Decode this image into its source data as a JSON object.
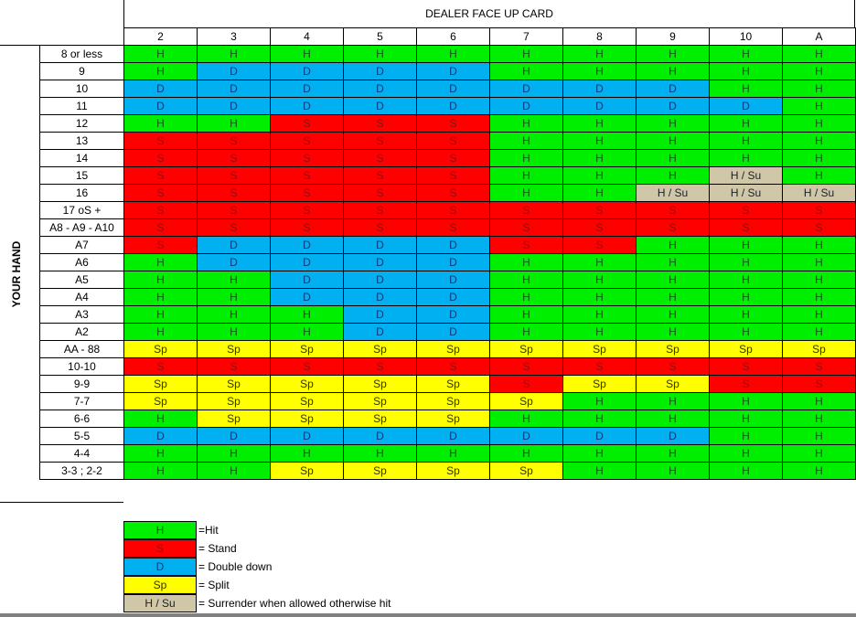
{
  "header": {
    "title": "DEALER FACE UP CARD"
  },
  "side_label": "YOUR HAND",
  "columns": [
    "2",
    "3",
    "4",
    "5",
    "6",
    "7",
    "8",
    "9",
    "10",
    "A"
  ],
  "colors": {
    "H": "#00ee00",
    "S": "#ff0000",
    "D": "#00b0f0",
    "Sp": "#ffff00",
    "H / Su": "#cfc7a8"
  },
  "rows": [
    {
      "label": "8 or less",
      "cells": [
        "H",
        "H",
        "H",
        "H",
        "H",
        "H",
        "H",
        "H",
        "H",
        "H"
      ]
    },
    {
      "label": "9",
      "cells": [
        "H",
        "D",
        "D",
        "D",
        "D",
        "H",
        "H",
        "H",
        "H",
        "H"
      ]
    },
    {
      "label": "10",
      "cells": [
        "D",
        "D",
        "D",
        "D",
        "D",
        "D",
        "D",
        "D",
        "H",
        "H"
      ]
    },
    {
      "label": "11",
      "cells": [
        "D",
        "D",
        "D",
        "D",
        "D",
        "D",
        "D",
        "D",
        "D",
        "H"
      ]
    },
    {
      "label": "12",
      "cells": [
        "H",
        "H",
        "S",
        "S",
        "S",
        "H",
        "H",
        "H",
        "H",
        "H"
      ]
    },
    {
      "label": "13",
      "cells": [
        "S",
        "S",
        "S",
        "S",
        "S",
        "H",
        "H",
        "H",
        "H",
        "H"
      ]
    },
    {
      "label": "14",
      "cells": [
        "S",
        "S",
        "S",
        "S",
        "S",
        "H",
        "H",
        "H",
        "H",
        "H"
      ]
    },
    {
      "label": "15",
      "cells": [
        "S",
        "S",
        "S",
        "S",
        "S",
        "H",
        "H",
        "H",
        "H / Su",
        "H"
      ]
    },
    {
      "label": "16",
      "cells": [
        "S",
        "S",
        "S",
        "S",
        "S",
        "H",
        "H",
        "H / Su",
        "H / Su",
        "H / Su"
      ]
    },
    {
      "label": "17 oS +",
      "cells": [
        "S",
        "S",
        "S",
        "S",
        "S",
        "S",
        "S",
        "S",
        "S",
        "S"
      ]
    },
    {
      "label": "A8 - A9 - A10",
      "cells": [
        "S",
        "S",
        "S",
        "S",
        "S",
        "S",
        "S",
        "S",
        "S",
        "S"
      ]
    },
    {
      "label": "A7",
      "cells": [
        "S",
        "D",
        "D",
        "D",
        "D",
        "S",
        "S",
        "H",
        "H",
        "H"
      ]
    },
    {
      "label": "A6",
      "cells": [
        "H",
        "D",
        "D",
        "D",
        "D",
        "H",
        "H",
        "H",
        "H",
        "H"
      ]
    },
    {
      "label": "A5",
      "cells": [
        "H",
        "H",
        "D",
        "D",
        "D",
        "H",
        "H",
        "H",
        "H",
        "H"
      ]
    },
    {
      "label": "A4",
      "cells": [
        "H",
        "H",
        "D",
        "D",
        "D",
        "H",
        "H",
        "H",
        "H",
        "H"
      ]
    },
    {
      "label": "A3",
      "cells": [
        "H",
        "H",
        "H",
        "D",
        "D",
        "H",
        "H",
        "H",
        "H",
        "H"
      ]
    },
    {
      "label": "A2",
      "cells": [
        "H",
        "H",
        "H",
        "D",
        "D",
        "H",
        "H",
        "H",
        "H",
        "H"
      ]
    },
    {
      "label": "AA - 88",
      "cells": [
        "Sp",
        "Sp",
        "Sp",
        "Sp",
        "Sp",
        "Sp",
        "Sp",
        "Sp",
        "Sp",
        "Sp"
      ]
    },
    {
      "label": "10-10",
      "cells": [
        "S",
        "S",
        "S",
        "S",
        "S",
        "S",
        "S",
        "S",
        "S",
        "S"
      ]
    },
    {
      "label": "9-9",
      "cells": [
        "Sp",
        "Sp",
        "Sp",
        "Sp",
        "Sp",
        "S",
        "Sp",
        "Sp",
        "S",
        "S"
      ]
    },
    {
      "label": "7-7",
      "cells": [
        "Sp",
        "Sp",
        "Sp",
        "Sp",
        "Sp",
        "Sp",
        "H",
        "H",
        "H",
        "H"
      ]
    },
    {
      "label": "6-6",
      "cells": [
        "H",
        "Sp",
        "Sp",
        "Sp",
        "Sp",
        "H",
        "H",
        "H",
        "H",
        "H"
      ]
    },
    {
      "label": "5-5",
      "cells": [
        "D",
        "D",
        "D",
        "D",
        "D",
        "D",
        "D",
        "D",
        "H",
        "H"
      ]
    },
    {
      "label": "4-4",
      "cells": [
        "H",
        "H",
        "H",
        "H",
        "H",
        "H",
        "H",
        "H",
        "H",
        "H"
      ]
    },
    {
      "label": "3-3 ; 2-2",
      "cells": [
        "H",
        "H",
        "Sp",
        "Sp",
        "Sp",
        "Sp",
        "H",
        "H",
        "H",
        "H"
      ]
    }
  ],
  "legend": [
    {
      "code": "H",
      "text": "=Hit"
    },
    {
      "code": "S",
      "text": "= Stand"
    },
    {
      "code": "D",
      "text": "= Double down"
    },
    {
      "code": "Sp",
      "text": "= Split"
    },
    {
      "code": "H / Su",
      "text": "= Surrender when allowed otherwise hit"
    }
  ],
  "chart_data": {
    "type": "table",
    "title": "DEALER FACE UP CARD",
    "xlabel": "DEALER FACE UP CARD",
    "ylabel": "YOUR HAND",
    "columns": [
      "2",
      "3",
      "4",
      "5",
      "6",
      "7",
      "8",
      "9",
      "10",
      "A"
    ],
    "row_labels": [
      "8 or less",
      "9",
      "10",
      "11",
      "12",
      "13",
      "14",
      "15",
      "16",
      "17 oS +",
      "A8 - A9 - A10",
      "A7",
      "A6",
      "A5",
      "A4",
      "A3",
      "A2",
      "AA - 88",
      "10-10",
      "9-9",
      "7-7",
      "6-6",
      "5-5",
      "4-4",
      "3-3 ; 2-2"
    ],
    "values": [
      [
        "H",
        "H",
        "H",
        "H",
        "H",
        "H",
        "H",
        "H",
        "H",
        "H"
      ],
      [
        "H",
        "D",
        "D",
        "D",
        "D",
        "H",
        "H",
        "H",
        "H",
        "H"
      ],
      [
        "D",
        "D",
        "D",
        "D",
        "D",
        "D",
        "D",
        "D",
        "H",
        "H"
      ],
      [
        "D",
        "D",
        "D",
        "D",
        "D",
        "D",
        "D",
        "D",
        "D",
        "H"
      ],
      [
        "H",
        "H",
        "S",
        "S",
        "S",
        "H",
        "H",
        "H",
        "H",
        "H"
      ],
      [
        "S",
        "S",
        "S",
        "S",
        "S",
        "H",
        "H",
        "H",
        "H",
        "H"
      ],
      [
        "S",
        "S",
        "S",
        "S",
        "S",
        "H",
        "H",
        "H",
        "H",
        "H"
      ],
      [
        "S",
        "S",
        "S",
        "S",
        "S",
        "H",
        "H",
        "H",
        "H / Su",
        "H"
      ],
      [
        "S",
        "S",
        "S",
        "S",
        "S",
        "H",
        "H",
        "H / Su",
        "H / Su",
        "H / Su"
      ],
      [
        "S",
        "S",
        "S",
        "S",
        "S",
        "S",
        "S",
        "S",
        "S",
        "S"
      ],
      [
        "S",
        "S",
        "S",
        "S",
        "S",
        "S",
        "S",
        "S",
        "S",
        "S"
      ],
      [
        "S",
        "D",
        "D",
        "D",
        "D",
        "S",
        "S",
        "H",
        "H",
        "H"
      ],
      [
        "H",
        "D",
        "D",
        "D",
        "D",
        "H",
        "H",
        "H",
        "H",
        "H"
      ],
      [
        "H",
        "H",
        "D",
        "D",
        "D",
        "H",
        "H",
        "H",
        "H",
        "H"
      ],
      [
        "H",
        "H",
        "D",
        "D",
        "D",
        "H",
        "H",
        "H",
        "H",
        "H"
      ],
      [
        "H",
        "H",
        "H",
        "D",
        "D",
        "H",
        "H",
        "H",
        "H",
        "H"
      ],
      [
        "H",
        "H",
        "H",
        "D",
        "D",
        "H",
        "H",
        "H",
        "H",
        "H"
      ],
      [
        "Sp",
        "Sp",
        "Sp",
        "Sp",
        "Sp",
        "Sp",
        "Sp",
        "Sp",
        "Sp",
        "Sp"
      ],
      [
        "S",
        "S",
        "S",
        "S",
        "S",
        "S",
        "S",
        "S",
        "S",
        "S"
      ],
      [
        "Sp",
        "Sp",
        "Sp",
        "Sp",
        "Sp",
        "S",
        "Sp",
        "Sp",
        "S",
        "S"
      ],
      [
        "Sp",
        "Sp",
        "Sp",
        "Sp",
        "Sp",
        "Sp",
        "H",
        "H",
        "H",
        "H"
      ],
      [
        "H",
        "Sp",
        "Sp",
        "Sp",
        "Sp",
        "H",
        "H",
        "H",
        "H",
        "H"
      ],
      [
        "D",
        "D",
        "D",
        "D",
        "D",
        "D",
        "D",
        "D",
        "H",
        "H"
      ],
      [
        "H",
        "H",
        "H",
        "H",
        "H",
        "H",
        "H",
        "H",
        "H",
        "H"
      ],
      [
        "H",
        "H",
        "Sp",
        "Sp",
        "Sp",
        "Sp",
        "H",
        "H",
        "H",
        "H"
      ]
    ],
    "legend": {
      "H": "Hit",
      "S": "Stand",
      "D": "Double down",
      "Sp": "Split",
      "H / Su": "Surrender when allowed otherwise hit"
    }
  }
}
